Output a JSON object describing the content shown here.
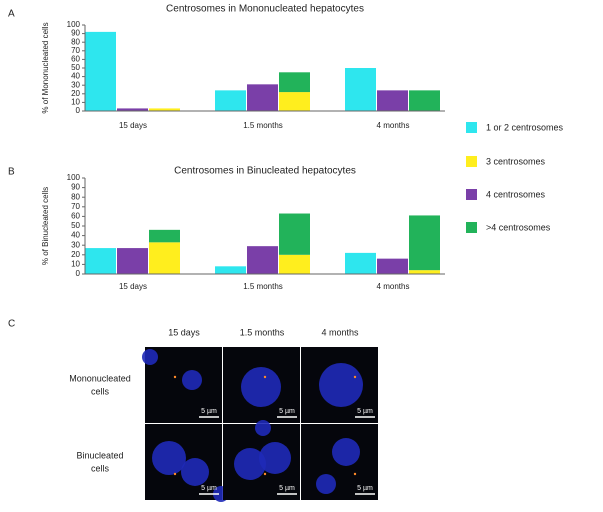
{
  "chart_data": [
    {
      "type": "bar",
      "panel": "A",
      "title": "Centrosomes in Mononucleated hepatocytes",
      "y_label": "% of Mononucleated cells",
      "categories": [
        "15 days",
        "1.5 months",
        "4 months"
      ],
      "series": [
        {
          "name": "1 or 2 centrosomes",
          "color": "#2ee6ee",
          "values": [
            92,
            24,
            50
          ]
        },
        {
          "name": "3 centrosomes",
          "color": "#ffee1e",
          "values": [
            3,
            22,
            0
          ]
        },
        {
          "name": "4 centrosomes",
          "color": "#7a3fa8",
          "values": [
            3,
            31,
            24
          ]
        },
        {
          "name": ">4 centrosomes",
          "color": "#22b35a",
          "values": [
            0,
            23,
            24
          ]
        }
      ],
      "ylim": [
        0,
        100
      ],
      "yticks": [
        0,
        10,
        20,
        30,
        40,
        50,
        60,
        70,
        80,
        90,
        100
      ]
    },
    {
      "type": "bar",
      "panel": "B",
      "title": "Centrosomes in Binucleated hepatocytes",
      "y_label": "% of Binucleated cells",
      "categories": [
        "15 days",
        "1.5 months",
        "4 months"
      ],
      "series": [
        {
          "color": "#2ee6ee",
          "values": [
            27,
            8,
            22
          ]
        },
        {
          "color": "#ffee1e",
          "values": [
            33,
            20,
            4
          ]
        },
        {
          "color": "#7a3fa8",
          "values": [
            27,
            29,
            16
          ]
        },
        {
          "color": "#22b35a",
          "values": [
            13,
            43,
            57
          ]
        }
      ],
      "ylim": [
        0,
        100
      ],
      "yticks": [
        0,
        10,
        20,
        30,
        40,
        50,
        60,
        70,
        80,
        90,
        100
      ]
    }
  ],
  "micrographs": {
    "panel": "C",
    "columns": [
      "15 days",
      "1.5 months",
      "4 months"
    ],
    "rows": [
      "Mononucleated cells",
      "Binucleated cells"
    ],
    "scale_bar": "5 µm"
  }
}
